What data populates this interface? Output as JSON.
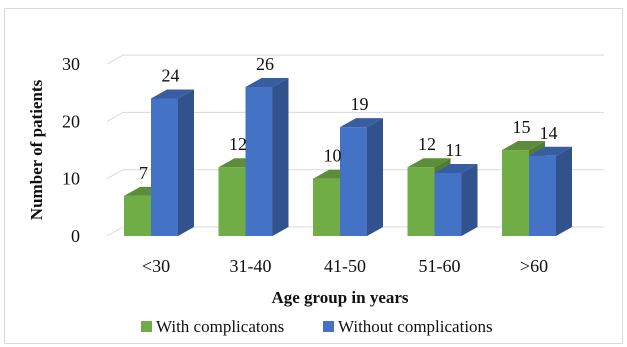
{
  "chart_data": {
    "type": "bar",
    "title": "",
    "xlabel": "Age group in years",
    "ylabel": "Number of patients",
    "categories": [
      "<30",
      "31-40",
      "41-50",
      "51-60",
      ">60"
    ],
    "series": [
      {
        "name": "With complicatons",
        "values": [
          7,
          12,
          10,
          12,
          15
        ],
        "color": "#70ad47"
      },
      {
        "name": "Without complications",
        "values": [
          24,
          26,
          19,
          11,
          14
        ],
        "color": "#4472c4"
      }
    ],
    "ylim": [
      0,
      30
    ],
    "yticks": [
      0,
      10,
      20,
      30
    ],
    "grid": true,
    "legend_position": "bottom",
    "style": "3d-clustered-column"
  }
}
